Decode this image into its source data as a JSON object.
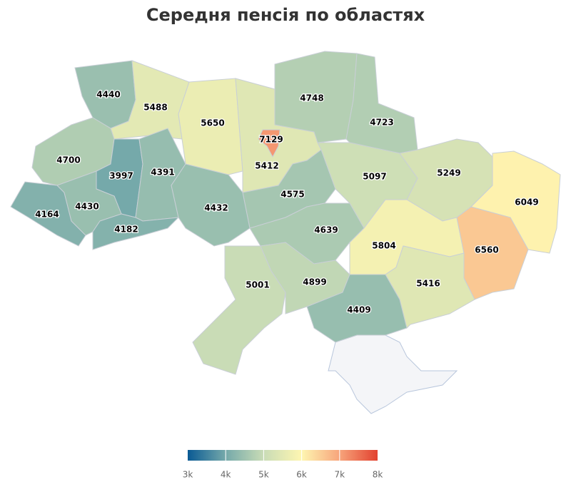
{
  "chart_data": {
    "type": "choropleth",
    "title": "Середня пенсія по областях",
    "values": [
      4440,
      5488,
      5650,
      7129,
      5412,
      4748,
      4723,
      4700,
      3997,
      4391,
      4575,
      5097,
      5249,
      6049,
      4164,
      4430,
      4182,
      4432,
      4639,
      5804,
      6560,
      5001,
      4899,
      5416,
      4409
    ],
    "colorbar": {
      "ticks": [
        {
          "value": 3000,
          "label": "3k"
        },
        {
          "value": 4000,
          "label": "4k"
        },
        {
          "value": 5000,
          "label": "5k"
        },
        {
          "value": 6000,
          "label": "6k"
        },
        {
          "value": 7000,
          "label": "7k"
        },
        {
          "value": 8000,
          "label": "8k"
        }
      ],
      "colors": [
        "#0a5a94",
        "#75a9aa",
        "#c9dcb6",
        "#fef6b1",
        "#f7a47b",
        "#e2412f"
      ]
    }
  }
}
